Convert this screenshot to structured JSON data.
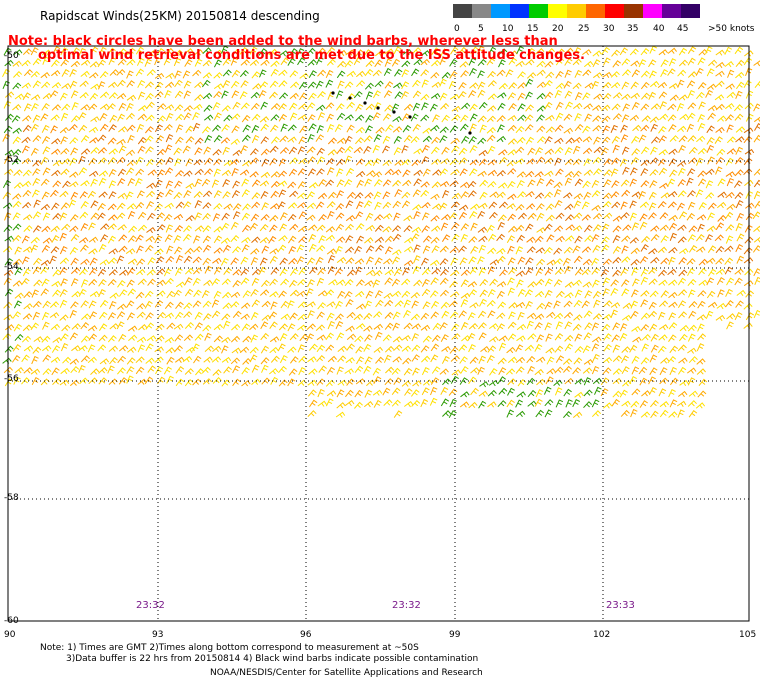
{
  "title": "Rapidscat Winds(25KM) 20150814 descending",
  "note_line1": "Note: black circles have been added to the wind barbs, wherever less than",
  "note_line2": "optimal wind retrieval conditions are met due to the ISS attitude changes.",
  "legend": {
    "labels": [
      "0",
      "5",
      "10",
      "15",
      "20",
      "25",
      "30",
      "35",
      "40",
      "45",
      ">50 knots"
    ],
    "colors": [
      "#444444",
      "#888888",
      "#0099ff",
      "#0033ff",
      "#00cc00",
      "#ffff00",
      "#ffcc00",
      "#ff6600",
      "#ff0000",
      "#993300",
      "#ff00ff",
      "#660099",
      "#330066"
    ]
  },
  "axes": {
    "lat_labels": [
      "-50",
      "-52",
      "-54",
      "-56",
      "-58",
      "-60"
    ],
    "lon_labels": [
      "90",
      "93",
      "96",
      "99",
      "102",
      "105"
    ]
  },
  "times": [
    "23:32",
    "23:32",
    "23:33"
  ],
  "footnote_line1": "Note: 1) Times are GMT 2)Times along bottom correspond to measurement at ~50S",
  "footnote_line2": "3)Data buffer is 22 hrs from 20150814 4) Black wind barbs indicate possible contamination",
  "credit": "NOAA/NESDIS/Center for Satellite Applications and Research",
  "colors": {
    "note": "#ff0000",
    "time": "#7a1a8a",
    "grid": "#000000"
  }
}
